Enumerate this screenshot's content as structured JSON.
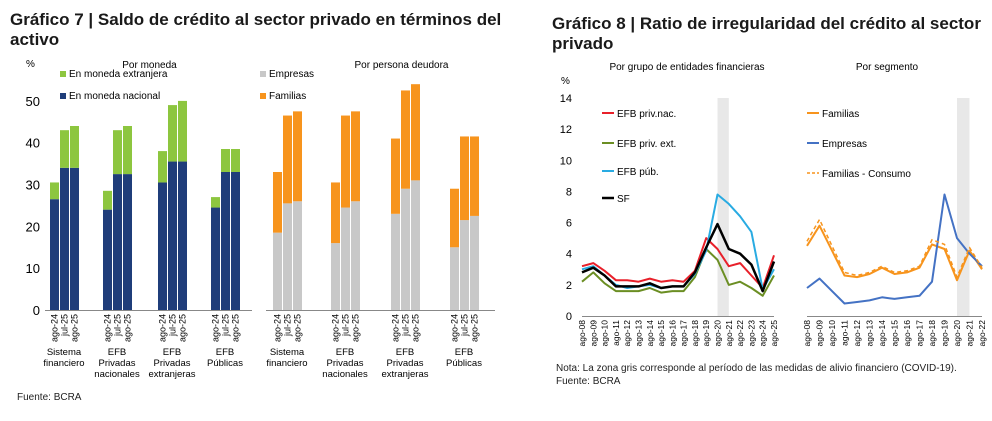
{
  "chart7": {
    "title": "Gráfico 7 | Saldo de crédito al sector privado en términos del activo",
    "unit": "%",
    "source": "Fuente: BCRA",
    "panel_left": {
      "subtitle": "Por moneda",
      "legend": [
        "En moneda extranjera",
        "En moneda nacional"
      ]
    },
    "panel_right": {
      "subtitle": "Por persona deudora",
      "legend": [
        "Empresas",
        "Familias"
      ]
    },
    "yticks": [
      "0",
      "10",
      "20",
      "30",
      "40",
      "50"
    ],
    "period_labels": [
      "ago-24",
      "jul-25",
      "ago-25"
    ],
    "group_labels": [
      [
        "Sistema",
        "financiero"
      ],
      [
        "EFB",
        "Privadas",
        "nacionales"
      ],
      [
        "EFB",
        "Privadas",
        "extranjeras"
      ],
      [
        "EFB",
        "Públicas"
      ]
    ]
  },
  "chart8": {
    "title": "Gráfico 8 | Ratio de irregularidad del crédito al sector privado",
    "unit": "%",
    "note": "Nota: La zona gris corresponde al período de las medidas de alivio financiero (COVID-19).",
    "source": "Fuente: BCRA",
    "panel_left": {
      "subtitle": "Por grupo de entidades financieras",
      "legend": [
        "EFB priv.nac.",
        "EFB priv. ext.",
        "EFB púb.",
        "SF"
      ]
    },
    "panel_right": {
      "subtitle": "Por segmento",
      "legend": [
        "Familias",
        "Empresas",
        "Familias - Consumo"
      ]
    },
    "yticks": [
      "0",
      "2",
      "4",
      "6",
      "8",
      "10",
      "12",
      "14"
    ],
    "xticks_left": [
      "ago-08",
      "ago-09",
      "ago-10",
      "ago-11",
      "ago-12",
      "ago-13",
      "ago-14",
      "ago-15",
      "ago-16",
      "ago-17",
      "ago-18",
      "ago-19",
      "ago-20",
      "ago-21",
      "ago-22",
      "ago-23",
      "ago-24",
      "ago-25"
    ],
    "xticks_right": [
      "ago-08",
      "ago-09",
      "ago-10",
      "ago-11",
      "ago-12",
      "ago-13",
      "ago-14",
      "ago-15",
      "ago-16",
      "ago-17",
      "ago-18",
      "ago-19",
      "ago-20",
      "ago-21",
      "ago-22"
    ]
  },
  "colors": {
    "green": "#8dc63f",
    "navy": "#1f3d7a",
    "grey": "#c8c8c8",
    "orange": "#f7941d",
    "red": "#e8202a",
    "olive": "#6b8e23",
    "sky": "#29abe2",
    "black": "#000000",
    "orange_line": "#f7941d",
    "blue_line": "#4472c4",
    "shade": "#e8e8e8"
  },
  "chart_data": [
    {
      "type": "bar",
      "stacked": true,
      "title": "Por moneda",
      "ylim": [
        0,
        55
      ],
      "ylabel": "%",
      "categories": [
        "Sistema financiero ago-24",
        "Sistema financiero jul-25",
        "Sistema financiero ago-25",
        "EFB Privadas nacionales ago-24",
        "EFB Privadas nacionales jul-25",
        "EFB Privadas nacionales ago-25",
        "EFB Privadas extranjeras ago-24",
        "EFB Privadas extranjeras jul-25",
        "EFB Privadas extranjeras ago-25",
        "EFB Públicas ago-24",
        "EFB Públicas jul-25",
        "EFB Públicas ago-25"
      ],
      "series": [
        {
          "name": "En moneda nacional",
          "values": [
            26.5,
            34,
            34,
            24,
            32.5,
            32.5,
            30.5,
            35.5,
            35.5,
            24.5,
            33,
            33
          ]
        },
        {
          "name": "En moneda extranjera",
          "values": [
            4,
            9,
            10,
            4.5,
            10.5,
            11.5,
            7.5,
            13.5,
            14.5,
            2.5,
            5.5,
            5.5
          ]
        }
      ]
    },
    {
      "type": "bar",
      "stacked": true,
      "title": "Por persona deudora",
      "ylim": [
        0,
        55
      ],
      "ylabel": "%",
      "categories": [
        "Sistema financiero ago-24",
        "Sistema financiero jul-25",
        "Sistema financiero ago-25",
        "EFB Privadas nacionales ago-24",
        "EFB Privadas nacionales jul-25",
        "EFB Privadas nacionales ago-25",
        "EFB Privadas extranjeras ago-24",
        "EFB Privadas extranjeras jul-25",
        "EFB Privadas extranjeras ago-25",
        "EFB Públicas ago-24",
        "EFB Públicas jul-25",
        "EFB Públicas ago-25"
      ],
      "series": [
        {
          "name": "Empresas",
          "values": [
            18.5,
            25.5,
            26,
            16,
            24.5,
            26,
            23,
            29,
            31,
            15,
            21.5,
            22.5
          ]
        },
        {
          "name": "Familias",
          "values": [
            14.5,
            21,
            21.5,
            14.5,
            22,
            21.5,
            18,
            23.5,
            23,
            14,
            20,
            19
          ]
        }
      ]
    },
    {
      "type": "line",
      "title": "Por grupo de entidades financieras",
      "ylim": [
        0,
        14
      ],
      "ylabel": "%",
      "x": [
        2008,
        2009,
        2010,
        2011,
        2012,
        2013,
        2014,
        2015,
        2016,
        2017,
        2018,
        2019,
        2020,
        2021,
        2022,
        2023,
        2024,
        2025
      ],
      "shaded_range": [
        2020,
        2021
      ],
      "series": [
        {
          "name": "EFB priv.nac.",
          "values": [
            3.2,
            3.4,
            2.9,
            2.3,
            2.3,
            2.2,
            2.4,
            2.2,
            2.3,
            2.2,
            2.9,
            5.0,
            4.3,
            3.2,
            3.4,
            2.6,
            1.8,
            3.9
          ]
        },
        {
          "name": "EFB priv. ext.",
          "values": [
            2.2,
            2.8,
            2.1,
            1.6,
            1.6,
            1.6,
            1.8,
            1.5,
            1.6,
            1.6,
            2.5,
            4.3,
            3.6,
            2.0,
            2.2,
            1.8,
            1.3,
            2.6
          ]
        },
        {
          "name": "EFB púb.",
          "values": [
            3.0,
            3.2,
            2.6,
            2.0,
            1.8,
            1.9,
            2.0,
            1.8,
            1.9,
            1.9,
            2.7,
            4.2,
            7.8,
            7.2,
            6.4,
            5.4,
            1.7,
            3.0
          ]
        },
        {
          "name": "SF",
          "values": [
            2.8,
            3.1,
            2.6,
            1.9,
            1.9,
            1.9,
            2.1,
            1.8,
            1.9,
            1.9,
            2.8,
            4.4,
            5.9,
            4.3,
            4.0,
            3.3,
            1.6,
            3.5
          ]
        }
      ]
    },
    {
      "type": "line",
      "title": "Por segmento",
      "ylim": [
        0,
        14
      ],
      "ylabel": "%",
      "x": [
        2008,
        2009,
        2010,
        2011,
        2012,
        2013,
        2014,
        2015,
        2016,
        2017,
        2018,
        2019,
        2020,
        2021,
        2022
      ],
      "shaded_range": [
        2020,
        2021
      ],
      "series": [
        {
          "name": "Familias",
          "values": [
            4.5,
            5.8,
            4.2,
            2.6,
            2.5,
            2.7,
            3.1,
            2.7,
            2.8,
            3.1,
            4.6,
            4.3,
            2.3,
            4.2,
            3.0
          ]
        },
        {
          "name": "Empresas",
          "values": [
            1.8,
            2.4,
            1.6,
            0.8,
            0.9,
            1.0,
            1.2,
            1.1,
            1.2,
            1.3,
            2.2,
            7.8,
            5.0,
            4.0,
            3.2
          ]
        },
        {
          "name": "Familias - Consumo",
          "values": [
            4.8,
            6.2,
            4.5,
            2.8,
            2.6,
            2.8,
            3.2,
            2.8,
            2.9,
            3.2,
            4.9,
            4.6,
            2.5,
            4.4,
            3.1
          ]
        }
      ]
    }
  ]
}
